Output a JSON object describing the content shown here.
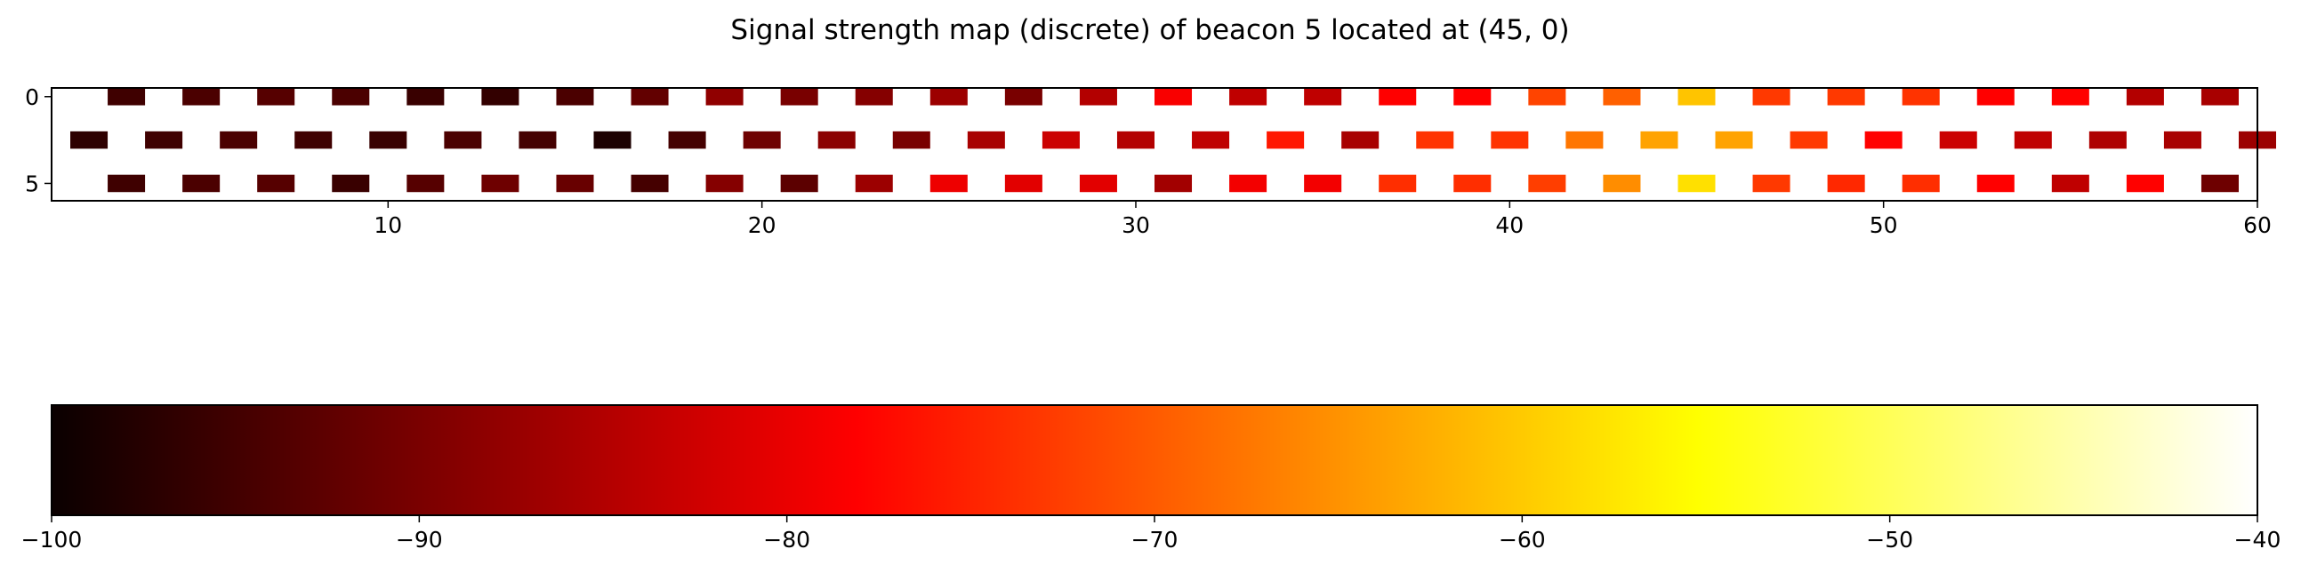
{
  "chart_data": {
    "type": "heatmap",
    "title": "Signal strength map (discrete) of beacon 5 located at (45, 0)",
    "x_ticks": [
      10,
      20,
      30,
      40,
      50,
      60
    ],
    "y_ticks": [
      0,
      5
    ],
    "xlim": [
      1,
      60
    ],
    "ylim": [
      6,
      -0.5
    ],
    "cell_size": 1,
    "cells": [
      {
        "x": 3,
        "y": 0,
        "value": -95.5
      },
      {
        "x": 5,
        "y": 0,
        "value": -94.5
      },
      {
        "x": 7,
        "y": 0,
        "value": -93.5
      },
      {
        "x": 9,
        "y": 0,
        "value": -94.5
      },
      {
        "x": 11,
        "y": 0,
        "value": -96.0
      },
      {
        "x": 13,
        "y": 0,
        "value": -96.5
      },
      {
        "x": 15,
        "y": 0,
        "value": -94.5
      },
      {
        "x": 17,
        "y": 0,
        "value": -92.5
      },
      {
        "x": 19,
        "y": 0,
        "value": -88.5
      },
      {
        "x": 21,
        "y": 0,
        "value": -90.5
      },
      {
        "x": 23,
        "y": 0,
        "value": -89.5
      },
      {
        "x": 25,
        "y": 0,
        "value": -87.5
      },
      {
        "x": 27,
        "y": 0,
        "value": -90.5
      },
      {
        "x": 29,
        "y": 0,
        "value": -85.5
      },
      {
        "x": 31,
        "y": 0,
        "value": -79.5
      },
      {
        "x": 33,
        "y": 0,
        "value": -84.5
      },
      {
        "x": 35,
        "y": 0,
        "value": -84.5
      },
      {
        "x": 37,
        "y": 0,
        "value": -78.5
      },
      {
        "x": 39,
        "y": 0,
        "value": -78.5
      },
      {
        "x": 41,
        "y": 0,
        "value": -72.0
      },
      {
        "x": 43,
        "y": 0,
        "value": -69.5
      },
      {
        "x": 45,
        "y": 0,
        "value": -60.5
      },
      {
        "x": 47,
        "y": 0,
        "value": -73.0
      },
      {
        "x": 49,
        "y": 0,
        "value": -73.0
      },
      {
        "x": 51,
        "y": 0,
        "value": -73.5
      },
      {
        "x": 53,
        "y": 0,
        "value": -78.5
      },
      {
        "x": 55,
        "y": 0,
        "value": -78.0
      },
      {
        "x": 57,
        "y": 0,
        "value": -85.5
      },
      {
        "x": 59,
        "y": 0,
        "value": -86.5
      },
      {
        "x": 2,
        "y": 2.5,
        "value": -97.0
      },
      {
        "x": 4,
        "y": 2.5,
        "value": -95.5
      },
      {
        "x": 6,
        "y": 2.5,
        "value": -94.5
      },
      {
        "x": 8,
        "y": 2.5,
        "value": -95.5
      },
      {
        "x": 10,
        "y": 2.5,
        "value": -96.0
      },
      {
        "x": 12,
        "y": 2.5,
        "value": -94.5
      },
      {
        "x": 14,
        "y": 2.5,
        "value": -95.0
      },
      {
        "x": 16,
        "y": 2.5,
        "value": -98.5
      },
      {
        "x": 18,
        "y": 2.5,
        "value": -95.0
      },
      {
        "x": 20,
        "y": 2.5,
        "value": -91.5
      },
      {
        "x": 22,
        "y": 2.5,
        "value": -89.0
      },
      {
        "x": 24,
        "y": 2.5,
        "value": -90.5
      },
      {
        "x": 26,
        "y": 2.5,
        "value": -86.5
      },
      {
        "x": 28,
        "y": 2.5,
        "value": -83.5
      },
      {
        "x": 30,
        "y": 2.5,
        "value": -85.5
      },
      {
        "x": 32,
        "y": 2.5,
        "value": -84.5
      },
      {
        "x": 34,
        "y": 2.5,
        "value": -76.0
      },
      {
        "x": 36,
        "y": 2.5,
        "value": -86.5
      },
      {
        "x": 38,
        "y": 2.5,
        "value": -73.5
      },
      {
        "x": 40,
        "y": 2.5,
        "value": -73.5
      },
      {
        "x": 42,
        "y": 2.5,
        "value": -67.5
      },
      {
        "x": 44,
        "y": 2.5,
        "value": -63.5
      },
      {
        "x": 46,
        "y": 2.5,
        "value": -63.5
      },
      {
        "x": 48,
        "y": 2.5,
        "value": -73.0
      },
      {
        "x": 50,
        "y": 2.5,
        "value": -78.0
      },
      {
        "x": 52,
        "y": 2.5,
        "value": -83.5
      },
      {
        "x": 54,
        "y": 2.5,
        "value": -84.5
      },
      {
        "x": 56,
        "y": 2.5,
        "value": -86.0
      },
      {
        "x": 58,
        "y": 2.5,
        "value": -86.5
      },
      {
        "x": 60,
        "y": 2.5,
        "value": -87.5
      },
      {
        "x": 3,
        "y": 5,
        "value": -95.5
      },
      {
        "x": 5,
        "y": 5,
        "value": -94.5
      },
      {
        "x": 7,
        "y": 5,
        "value": -93.5
      },
      {
        "x": 9,
        "y": 5,
        "value": -96.0
      },
      {
        "x": 11,
        "y": 5,
        "value": -93.5
      },
      {
        "x": 13,
        "y": 5,
        "value": -91.5
      },
      {
        "x": 15,
        "y": 5,
        "value": -92.0
      },
      {
        "x": 17,
        "y": 5,
        "value": -95.0
      },
      {
        "x": 19,
        "y": 5,
        "value": -89.5
      },
      {
        "x": 21,
        "y": 5,
        "value": -93.0
      },
      {
        "x": 23,
        "y": 5,
        "value": -87.5
      },
      {
        "x": 25,
        "y": 5,
        "value": -80.5
      },
      {
        "x": 27,
        "y": 5,
        "value": -81.5
      },
      {
        "x": 29,
        "y": 5,
        "value": -81.5
      },
      {
        "x": 31,
        "y": 5,
        "value": -87.0
      },
      {
        "x": 33,
        "y": 5,
        "value": -80.0
      },
      {
        "x": 35,
        "y": 5,
        "value": -80.0
      },
      {
        "x": 37,
        "y": 5,
        "value": -74.0
      },
      {
        "x": 39,
        "y": 5,
        "value": -74.0
      },
      {
        "x": 41,
        "y": 5,
        "value": -72.5
      },
      {
        "x": 43,
        "y": 5,
        "value": -65.5
      },
      {
        "x": 45,
        "y": 5,
        "value": -58.0
      },
      {
        "x": 47,
        "y": 5,
        "value": -73.0
      },
      {
        "x": 49,
        "y": 5,
        "value": -74.5
      },
      {
        "x": 51,
        "y": 5,
        "value": -74.0
      },
      {
        "x": 53,
        "y": 5,
        "value": -79.0
      },
      {
        "x": 55,
        "y": 5,
        "value": -84.5
      },
      {
        "x": 57,
        "y": 5,
        "value": -78.0
      },
      {
        "x": 59,
        "y": 5,
        "value": -91.5
      }
    ],
    "colormap": "hot",
    "colorbar": {
      "vmin": -100,
      "vmax": -40,
      "ticks": [
        -100,
        -90,
        -80,
        -70,
        -60,
        -50,
        -40
      ],
      "orientation": "horizontal"
    },
    "grid": false
  }
}
